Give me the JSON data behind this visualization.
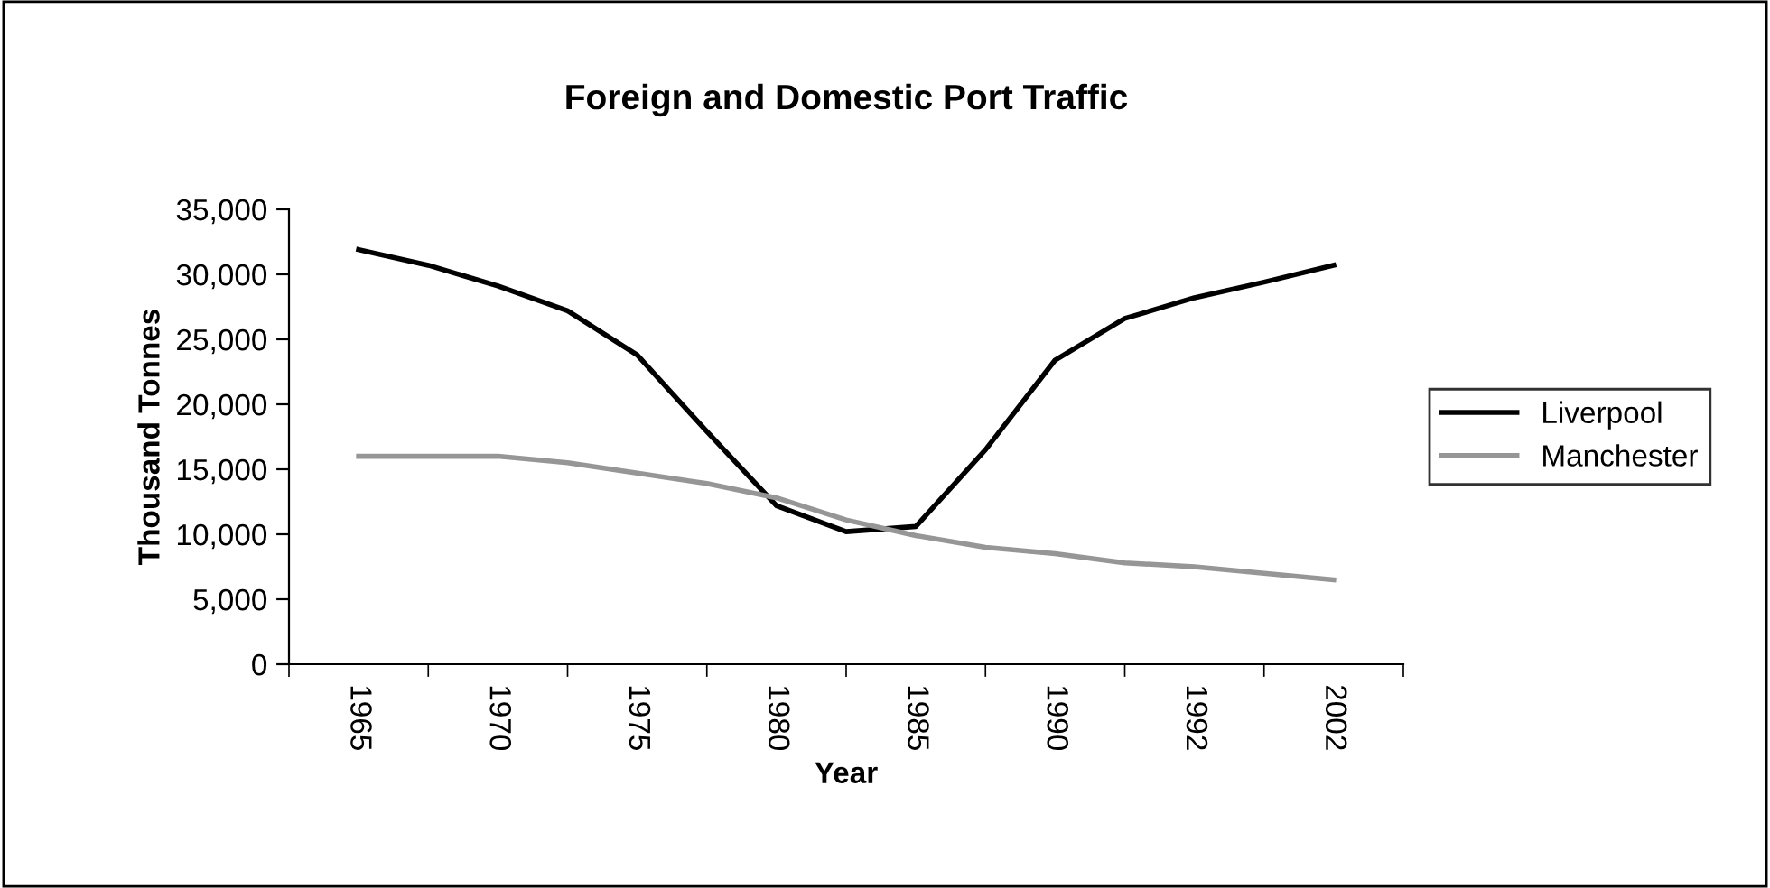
{
  "chart_data": {
    "type": "line",
    "title": "Foreign and Domestic Port Traffic",
    "xlabel": "Year",
    "ylabel": "Thousand Tonnes",
    "categories": [
      "1965",
      null,
      "1970",
      null,
      "1975",
      null,
      "1980",
      null,
      "1985",
      null,
      "1990",
      null,
      "1992",
      null,
      "2002"
    ],
    "series": [
      {
        "name": "Liverpool",
        "color": "#000000",
        "values": [
          31900,
          30700,
          29100,
          27200,
          23800,
          17900,
          12200,
          10200,
          10600,
          16500,
          23400,
          26600,
          28200,
          29400,
          30700
        ]
      },
      {
        "name": "Manchester",
        "color": "#969696",
        "values": [
          16000,
          16000,
          16000,
          15500,
          14700,
          13900,
          12800,
          11100,
          9900,
          9000,
          8500,
          7800,
          7500,
          7000,
          6500
        ]
      }
    ],
    "ylim": [
      0,
      35000
    ],
    "yticks": [
      {
        "value": 0,
        "label": "0"
      },
      {
        "value": 5000,
        "label": "5,000"
      },
      {
        "value": 10000,
        "label": "10,000"
      },
      {
        "value": 15000,
        "label": "15,000"
      },
      {
        "value": 20000,
        "label": "20,000"
      },
      {
        "value": 25000,
        "label": "25,000"
      },
      {
        "value": 30000,
        "label": "30,000"
      },
      {
        "value": 35000,
        "label": "35,000"
      }
    ],
    "grid": false,
    "legend": "right",
    "marker": "none",
    "line_style": "solid"
  }
}
